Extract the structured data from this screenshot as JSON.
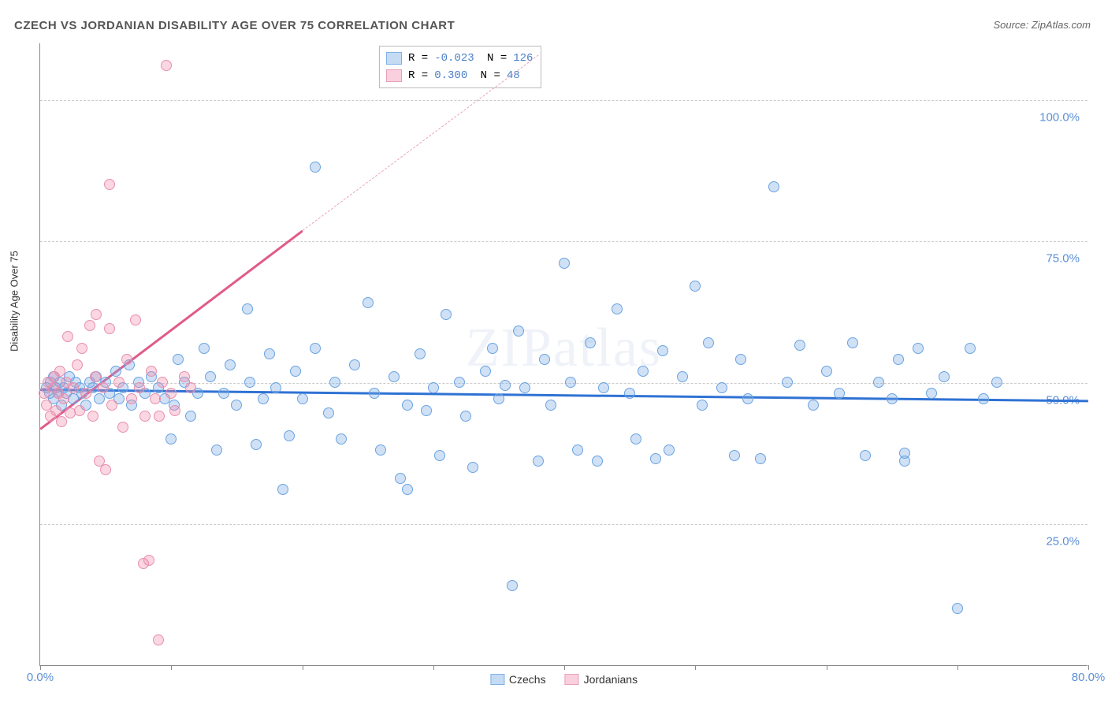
{
  "title": "CZECH VS JORDANIAN DISABILITY AGE OVER 75 CORRELATION CHART",
  "source": "Source: ZipAtlas.com",
  "watermark": "ZIPatlas",
  "chart": {
    "type": "scatter",
    "ylabel": "Disability Age Over 75",
    "xlim": [
      0,
      80
    ],
    "ylim": [
      0,
      110
    ],
    "yticks": [
      25,
      50,
      75,
      100
    ],
    "ytick_labels": [
      "25.0%",
      "50.0%",
      "75.0%",
      "100.0%"
    ],
    "xticks": [
      0,
      10,
      20,
      30,
      40,
      50,
      60,
      70,
      80
    ],
    "xtick_labels_shown": {
      "0": "0.0%",
      "80": "80.0%"
    },
    "grid_color": "#cccccc",
    "axis_color": "#888888",
    "background_color": "#ffffff",
    "point_radius": 7,
    "series": [
      {
        "name": "Czechs",
        "fill": "rgba(120,170,230,0.35)",
        "stroke": "#6aa3e0",
        "R": "-0.023",
        "N": "126",
        "trend": {
          "x1": 0,
          "y1": 49,
          "x2": 80,
          "y2": 47,
          "color": "#2f72d4",
          "width": 2.5
        },
        "points": [
          [
            0.5,
            49
          ],
          [
            0.7,
            48
          ],
          [
            0.8,
            50
          ],
          [
            1,
            47
          ],
          [
            1,
            51
          ],
          [
            1.2,
            49
          ],
          [
            1.4,
            48
          ],
          [
            1.5,
            50
          ],
          [
            1.6,
            46
          ],
          [
            1.8,
            49
          ],
          [
            2,
            48
          ],
          [
            2.2,
            51
          ],
          [
            2.5,
            47
          ],
          [
            2.7,
            50
          ],
          [
            3,
            49
          ],
          [
            3.2,
            48
          ],
          [
            3.5,
            46
          ],
          [
            3.8,
            50
          ],
          [
            4,
            49
          ],
          [
            4.3,
            51
          ],
          [
            4.5,
            47
          ],
          [
            5,
            50
          ],
          [
            5.3,
            48
          ],
          [
            5.8,
            52
          ],
          [
            6,
            47
          ],
          [
            6.3,
            49
          ],
          [
            6.8,
            53
          ],
          [
            7,
            46
          ],
          [
            7.5,
            50
          ],
          [
            8,
            48
          ],
          [
            8.5,
            51
          ],
          [
            9,
            49
          ],
          [
            9.5,
            47
          ],
          [
            10,
            40
          ],
          [
            10.2,
            46
          ],
          [
            10.5,
            54
          ],
          [
            11,
            50
          ],
          [
            11.5,
            44
          ],
          [
            12,
            48
          ],
          [
            12.5,
            56
          ],
          [
            13,
            51
          ],
          [
            13.5,
            38
          ],
          [
            14,
            48
          ],
          [
            14.5,
            53
          ],
          [
            15,
            46
          ],
          [
            15.8,
            63
          ],
          [
            16,
            50
          ],
          [
            16.5,
            39
          ],
          [
            17,
            47
          ],
          [
            17.5,
            55
          ],
          [
            18,
            49
          ],
          [
            18.5,
            31
          ],
          [
            19,
            40.5
          ],
          [
            19.5,
            52
          ],
          [
            20,
            47
          ],
          [
            21,
            56
          ],
          [
            21,
            88
          ],
          [
            22,
            44.5
          ],
          [
            22.5,
            50
          ],
          [
            23,
            40
          ],
          [
            24,
            53
          ],
          [
            25,
            64
          ],
          [
            25.5,
            48
          ],
          [
            26,
            38
          ],
          [
            27,
            51
          ],
          [
            27.5,
            33
          ],
          [
            28,
            46
          ],
          [
            28,
            31
          ],
          [
            29,
            55
          ],
          [
            30,
            49
          ],
          [
            30.5,
            37
          ],
          [
            31,
            62
          ],
          [
            32,
            50
          ],
          [
            32.5,
            44
          ],
          [
            33,
            35
          ],
          [
            34,
            52
          ],
          [
            34.5,
            56
          ],
          [
            35,
            47
          ],
          [
            36,
            14
          ],
          [
            36.5,
            59
          ],
          [
            37,
            49
          ],
          [
            38,
            36
          ],
          [
            38.5,
            54
          ],
          [
            39,
            46
          ],
          [
            40,
            71
          ],
          [
            40.5,
            50
          ],
          [
            41,
            38
          ],
          [
            42,
            57
          ],
          [
            42.5,
            36
          ],
          [
            43,
            49
          ],
          [
            44,
            63
          ],
          [
            45,
            48
          ],
          [
            45.5,
            40
          ],
          [
            46,
            52
          ],
          [
            47,
            36.5
          ],
          [
            47.5,
            55.5
          ],
          [
            48,
            38
          ],
          [
            49,
            51
          ],
          [
            50,
            67
          ],
          [
            50.5,
            46
          ],
          [
            51,
            57
          ],
          [
            52,
            49
          ],
          [
            53,
            37
          ],
          [
            53.5,
            54
          ],
          [
            54,
            47
          ],
          [
            55,
            36.5
          ],
          [
            56,
            84.5
          ],
          [
            57,
            50
          ],
          [
            58,
            56.5
          ],
          [
            59,
            46
          ],
          [
            60,
            52
          ],
          [
            61,
            48
          ],
          [
            62,
            57
          ],
          [
            63,
            37
          ],
          [
            64,
            50
          ],
          [
            65,
            47
          ],
          [
            65.5,
            54
          ],
          [
            66,
            36
          ],
          [
            67,
            56
          ],
          [
            68,
            48
          ],
          [
            69,
            51
          ],
          [
            70,
            10
          ],
          [
            71,
            56
          ],
          [
            72,
            47
          ],
          [
            73,
            50
          ],
          [
            66,
            37.5
          ],
          [
            35.5,
            49.5
          ],
          [
            29.5,
            45
          ]
        ]
      },
      {
        "name": "Jordanians",
        "fill": "rgba(240,140,170,0.35)",
        "stroke": "#e88fb0",
        "R": "0.300",
        "N": "48",
        "trend": {
          "x1": 0,
          "y1": 42,
          "x2": 20,
          "y2": 77,
          "color": "#e05a8a",
          "width": 2.5
        },
        "trend_dash": {
          "x1": 20,
          "y1": 77,
          "x2": 38,
          "y2": 108,
          "color": "#e8a5bd"
        },
        "points": [
          [
            0.3,
            48
          ],
          [
            0.5,
            46
          ],
          [
            0.6,
            50
          ],
          [
            0.8,
            44
          ],
          [
            1,
            49
          ],
          [
            1.1,
            51
          ],
          [
            1.2,
            45
          ],
          [
            1.4,
            48
          ],
          [
            1.5,
            52
          ],
          [
            1.6,
            43
          ],
          [
            1.8,
            47
          ],
          [
            2,
            50
          ],
          [
            2.1,
            58
          ],
          [
            2.3,
            44.5
          ],
          [
            2.5,
            49
          ],
          [
            2.8,
            53
          ],
          [
            3,
            45
          ],
          [
            3.2,
            56
          ],
          [
            3.5,
            48
          ],
          [
            3.8,
            60
          ],
          [
            4,
            44
          ],
          [
            4.2,
            51
          ],
          [
            4.5,
            36
          ],
          [
            4.8,
            49
          ],
          [
            5,
            34.5
          ],
          [
            5.3,
            59.5
          ],
          [
            5.5,
            46
          ],
          [
            5.3,
            85
          ],
          [
            6,
            50
          ],
          [
            6.3,
            42
          ],
          [
            6.6,
            54
          ],
          [
            7,
            47
          ],
          [
            7.3,
            61
          ],
          [
            7.9,
            18
          ],
          [
            7.6,
            49
          ],
          [
            8,
            44
          ],
          [
            8.3,
            18.5
          ],
          [
            8.5,
            52
          ],
          [
            8.8,
            47
          ],
          [
            9,
            4.5
          ],
          [
            9.3,
            50
          ],
          [
            9.6,
            106
          ],
          [
            10,
            48
          ],
          [
            10.3,
            45
          ],
          [
            11,
            51
          ],
          [
            11.5,
            49
          ],
          [
            9.1,
            44
          ],
          [
            4.3,
            62
          ]
        ]
      }
    ],
    "legend": {
      "swatch_border_blue": "#7fb1e8",
      "swatch_fill_blue": "rgba(150,190,235,0.55)",
      "swatch_border_pink": "#e89fbb",
      "swatch_fill_pink": "rgba(245,170,195,0.55)"
    }
  }
}
